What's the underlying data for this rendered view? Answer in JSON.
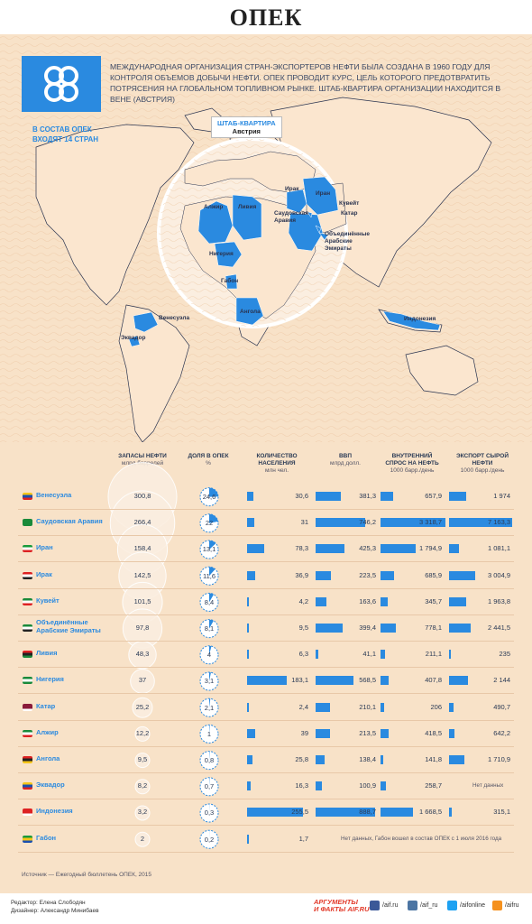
{
  "title": "ОПЕК",
  "intro": "Международная организация стран-экспортеров нефти была создана в 1960 году для контроля объемов добычи нефти. ОПЕК проводит курс, цель которого предотвратить потрясения на глобальном топливном рынке. Штаб-квартира организации находится в Вене (Австрия)",
  "members_line1": "В состав ОПЕК",
  "members_line2": "входят 14 стран",
  "hq_title": "ШТАБ-КВАРТИРА",
  "hq_place": "Австрия",
  "map_labels": {
    "algeria": "Алжир",
    "libya": "Ливия",
    "iraq": "Ирак",
    "iran": "Иран",
    "kuwait": "Кувейт",
    "saudi_1": "Саудовская",
    "saudi_2": "Аравия",
    "qatar": "Катар",
    "uae_1": "Объединённые",
    "uae_2": "Арабские",
    "uae_3": "Эмираты",
    "nigeria": "Нигерия",
    "gabon": "Габон",
    "angola": "Ангола",
    "venezuela": "Венесуэла",
    "ecuador": "Эквадор",
    "indonesia": "Индонезия"
  },
  "columns": {
    "reserves": {
      "label": "ЗАПАСЫ НЕФТИ",
      "unit": "млрд баррелей"
    },
    "share": {
      "label": "ДОЛЯ В ОПЕК",
      "unit": "%"
    },
    "population_1": {
      "label": "КОЛИЧЕСТВО"
    },
    "population_2": {
      "label": "НАСЕЛЕНИЯ",
      "unit": "млн чел."
    },
    "gdp": {
      "label": "ВВП",
      "unit": "млрд долл."
    },
    "demand_1": {
      "label": "ВНУТРЕННИЙ"
    },
    "demand_2": {
      "label": "СПРОС НА НЕФТЬ",
      "unit": "1000 барр./день"
    },
    "export_1": {
      "label": "ЭКСПОРТ СЫРОЙ"
    },
    "export_2": {
      "label": "НЕФТИ",
      "unit": "1000 барр./день"
    }
  },
  "chart_data": {
    "type": "table",
    "rows": [
      {
        "country": "Венесуэла",
        "reserves": "300,8",
        "share": "24,6",
        "population": "30,6",
        "gdp": "381,3",
        "demand": "657,9",
        "export": "1 974",
        "flag": [
          "#f5c518",
          "#1a4fb0",
          "#d22"
        ]
      },
      {
        "country": "Саудовская Аравия",
        "reserves": "266,4",
        "share": "22",
        "population": "31",
        "gdp": "746,2",
        "demand": "3 318,7",
        "export": "7 163,3",
        "flag": [
          "#1a8a3a",
          "#1a8a3a",
          "#1a8a3a"
        ]
      },
      {
        "country": "Иран",
        "reserves": "158,4",
        "share": "13,1",
        "population": "78,3",
        "gdp": "425,3",
        "demand": "1 794,9",
        "export": "1 081,1",
        "flag": [
          "#1a9a3a",
          "#ffffff",
          "#d22"
        ]
      },
      {
        "country": "Ирак",
        "reserves": "142,5",
        "share": "11,6",
        "population": "36,9",
        "gdp": "223,5",
        "demand": "685,9",
        "export": "3 004,9",
        "flag": [
          "#d22",
          "#ffffff",
          "#222"
        ]
      },
      {
        "country": "Кувейт",
        "reserves": "101,5",
        "share": "8,4",
        "population": "4,2",
        "gdp": "163,6",
        "demand": "345,7",
        "export": "1 963,8",
        "flag": [
          "#1a8a3a",
          "#ffffff",
          "#d22"
        ]
      },
      {
        "country_1": "Объединённые",
        "country_2": "Арабские Эмираты",
        "reserves": "97,8",
        "share": "8,1",
        "population": "9,5",
        "gdp": "399,4",
        "demand": "778,1",
        "export": "2 441,5",
        "flag": [
          "#1a8a3a",
          "#ffffff",
          "#222"
        ]
      },
      {
        "country": "Ливия",
        "reserves": "48,3",
        "share": "4",
        "population": "6,3",
        "gdp": "41,1",
        "demand": "211,1",
        "export": "235",
        "flag": [
          "#d22",
          "#222",
          "#1a8a3a"
        ]
      },
      {
        "country": "Нигерия",
        "reserves": "37",
        "share": "3,1",
        "population": "183,1",
        "gdp": "568,5",
        "demand": "407,8",
        "export": "2 144",
        "flag": [
          "#1a8a3a",
          "#ffffff",
          "#1a8a3a"
        ]
      },
      {
        "country": "Катар",
        "reserves": "25,2",
        "share": "2,1",
        "population": "2,4",
        "gdp": "210,1",
        "demand": "206",
        "export": "490,7",
        "flag": [
          "#8a1a3a",
          "#8a1a3a",
          "#ffffff"
        ]
      },
      {
        "country": "Алжир",
        "reserves": "12,2",
        "share": "1",
        "population": "39",
        "gdp": "213,5",
        "demand": "418,5",
        "export": "642,2",
        "flag": [
          "#1a8a3a",
          "#ffffff",
          "#d22"
        ]
      },
      {
        "country": "Ангола",
        "reserves": "9,5",
        "share": "0,8",
        "population": "25,8",
        "gdp": "138,4",
        "demand": "141,8",
        "export": "1 710,9",
        "flag": [
          "#d22",
          "#222",
          "#f5c518"
        ]
      },
      {
        "country": "Эквадор",
        "reserves": "8,2",
        "share": "0,7",
        "population": "16,3",
        "gdp": "100,9",
        "demand": "258,7",
        "export": "Нет данных",
        "flag": [
          "#f5c518",
          "#1a4fb0",
          "#d22"
        ]
      },
      {
        "country": "Индонезия",
        "reserves": "3,2",
        "share": "0,3",
        "population": "255,5",
        "gdp": "888,7",
        "demand": "1 668,5",
        "export": "315,1",
        "flag": [
          "#d22",
          "#d22",
          "#ffffff"
        ]
      },
      {
        "country": "Габон",
        "reserves": "2",
        "share": "0,2",
        "population": "1,7",
        "gdp": "",
        "demand": "",
        "export": "",
        "flag": [
          "#1a9a3a",
          "#f5c518",
          "#1a4fb0"
        ]
      }
    ],
    "gabon_note": "Нет данных, Габон вошел в состав ОПЕК с 1 июля 2016 года"
  },
  "source": "Источник — Ежегодный бюллетень ОПЕК, 2015",
  "editor": "Редактор: Елена Слободян",
  "designer": "Дизайнер: Александр Минибаев",
  "brand_line1": "АРГУМЕНТЫ",
  "brand_line2": "И ФАКТЫ AIF.RU",
  "social": {
    "fb": "/aif.ru",
    "vk": "/aif_ru",
    "tw": "/aifonline",
    "ok": "/aifru"
  },
  "colors": {
    "accent": "#2a8ae0",
    "background": "#f8e2c8",
    "circle": "#fbeee0"
  }
}
